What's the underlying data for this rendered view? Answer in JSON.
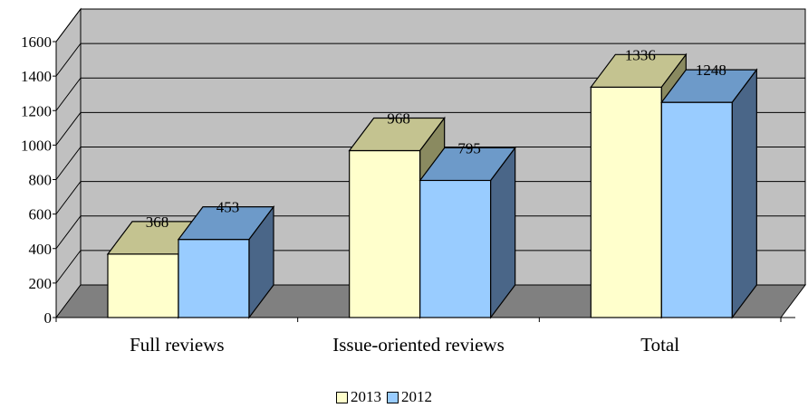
{
  "chart_data": {
    "type": "bar",
    "categories": [
      "Full reviews",
      "Issue-oriented reviews",
      "Total"
    ],
    "series": [
      {
        "name": "2013",
        "values": [
          368,
          968,
          1336
        ],
        "color": "#ffffcc",
        "top_color": "#c4c390",
        "side_color": "#8a8a60"
      },
      {
        "name": "2012",
        "values": [
          453,
          795,
          1248
        ],
        "color": "#99ccff",
        "top_color": "#6d9ac9",
        "side_color": "#4a6688"
      }
    ],
    "ylim": [
      0,
      1600
    ],
    "yticks": [
      "0",
      "200",
      "400",
      "600",
      "800",
      "1000",
      "1200",
      "1400",
      "1600"
    ],
    "data_labels": [
      [
        "368",
        "968",
        "1336"
      ],
      [
        "453",
        "795",
        "1248"
      ]
    ],
    "grid": true,
    "legend_position": "bottom",
    "wall_color": "#c0c0c0",
    "floor_color": "#808080",
    "title": "",
    "xlabel": "",
    "ylabel": ""
  }
}
